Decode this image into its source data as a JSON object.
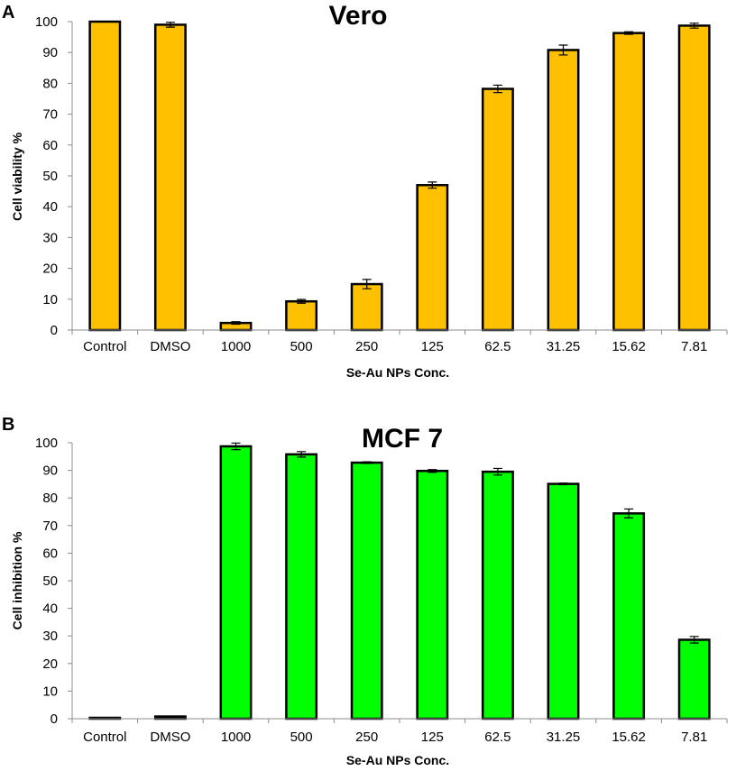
{
  "chart_data": [
    {
      "type": "bar",
      "panel": "A",
      "title": "Vero",
      "xlabel": "Se-Au NPs Conc.",
      "ylabel": "Cell viability %",
      "ylim": [
        0,
        100
      ],
      "yticks": [
        0,
        10,
        20,
        30,
        40,
        50,
        60,
        70,
        80,
        90,
        100
      ],
      "categories": [
        "Control",
        "DMSO",
        "1000",
        "500",
        "250",
        "125",
        "62.5",
        "31.25",
        "15.62",
        "7.81"
      ],
      "values": [
        100,
        99,
        2.3,
        9.3,
        14.9,
        47,
        78.2,
        90.8,
        96.3,
        98.7
      ],
      "errors": [
        0,
        0.8,
        0.4,
        0.6,
        1.5,
        1.0,
        1.2,
        1.6,
        0.4,
        0.8
      ],
      "bar_color": "#FFC000",
      "grid": false
    },
    {
      "type": "bar",
      "panel": "B",
      "title": "MCF 7",
      "xlabel": "Se-Au NPs Conc.",
      "ylabel": "Cell inhibition %",
      "ylim": [
        0,
        100
      ],
      "yticks": [
        0,
        10,
        20,
        30,
        40,
        50,
        60,
        70,
        80,
        90,
        100
      ],
      "categories": [
        "Control",
        "DMSO",
        "1000",
        "500",
        "250",
        "125",
        "62.5",
        "31.25",
        "15.62",
        "7.81"
      ],
      "values": [
        0,
        0.8,
        98.7,
        95.8,
        92.8,
        89.8,
        89.5,
        85.1,
        74.4,
        28.6
      ],
      "errors": [
        0,
        0,
        1.2,
        1.0,
        0.3,
        0.5,
        1.2,
        0.3,
        1.6,
        1.2
      ],
      "bar_color": "#00FF00",
      "grid": false
    }
  ]
}
